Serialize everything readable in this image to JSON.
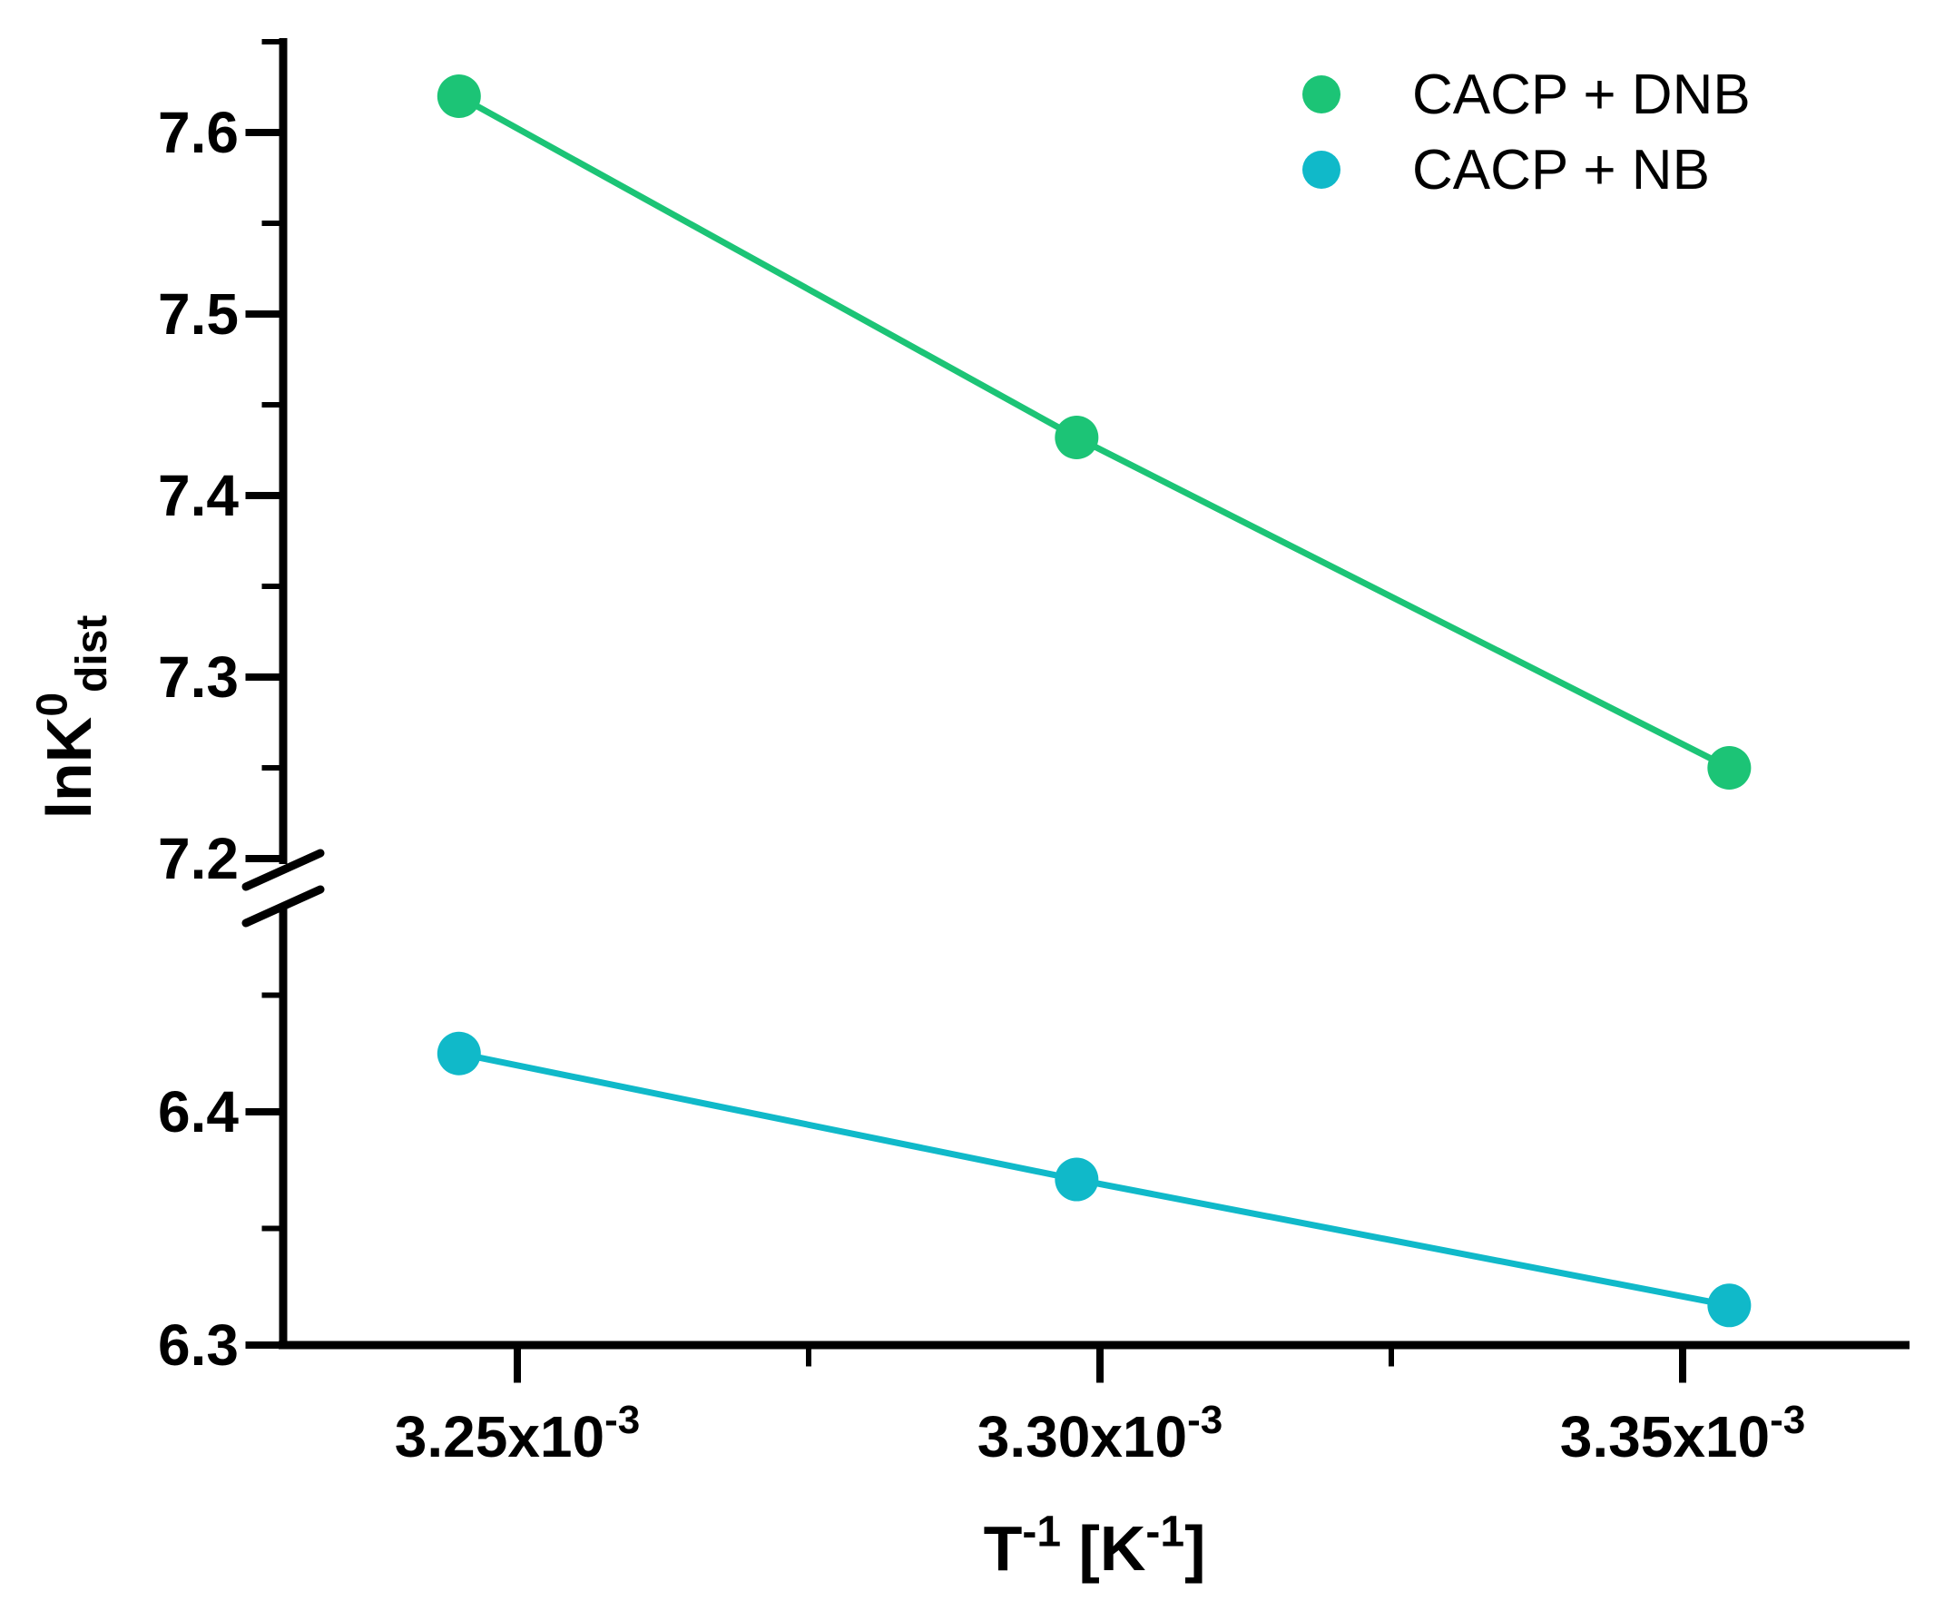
{
  "chart_data": {
    "type": "scatter",
    "title": "",
    "xlabel_segments": [
      {
        "t": "T"
      },
      {
        "t": "-1",
        "sup": true
      },
      {
        "t": " [K",
        "base": true
      },
      {
        "t": "-1",
        "sup": true
      },
      {
        "t": "]",
        "base": true
      }
    ],
    "ylabel_segments": [
      {
        "t": "lnK"
      },
      {
        "t": "0",
        "sup": true
      },
      {
        "t": "dist",
        "sub": true
      }
    ],
    "x_axis": {
      "major_ticks": [
        {
          "value": 0.00325,
          "mantissa": "3.25x10",
          "exp": "-3"
        },
        {
          "value": 0.0033,
          "mantissa": "3.30x10",
          "exp": "-3"
        },
        {
          "value": 0.00335,
          "mantissa": "3.35x10",
          "exp": "-3"
        }
      ],
      "minor_ticks": [
        0.003275,
        0.003325
      ],
      "range": [
        0.00323,
        0.00337
      ]
    },
    "y_axis": {
      "break_symbol": "double-slash",
      "break_between": [
        6.49,
        7.2
      ],
      "upper_segment": {
        "range": [
          7.2,
          7.655
        ],
        "major_ticks": [
          {
            "value": 7.6,
            "label": "7.6"
          },
          {
            "value": 7.5,
            "label": "7.5"
          },
          {
            "value": 7.4,
            "label": "7.4"
          },
          {
            "value": 7.3,
            "label": "7.3"
          },
          {
            "value": 7.2,
            "label": "7.2"
          }
        ],
        "minor_ticks": [
          7.65,
          7.55,
          7.45,
          7.35,
          7.25
        ]
      },
      "lower_segment": {
        "range": [
          6.3,
          6.49
        ],
        "major_ticks": [
          {
            "value": 6.4,
            "label": "6.4"
          },
          {
            "value": 6.3,
            "label": "6.3"
          }
        ],
        "minor_ticks": [
          6.45,
          6.35
        ]
      }
    },
    "series": [
      {
        "name": "CACP + NB",
        "color": "#10b9c9",
        "marker": "circle",
        "x": [
          0.003245,
          0.003298,
          0.003354
        ],
        "y": [
          6.425,
          6.371,
          6.317
        ]
      },
      {
        "name": "CACP + DNB",
        "color": "#1cc476",
        "marker": "circle",
        "x": [
          0.003245,
          0.003298,
          0.003354
        ],
        "y": [
          7.62,
          7.432,
          7.25
        ]
      }
    ],
    "legend": {
      "position": "top-right"
    },
    "colors": {
      "background": "#ffffff",
      "axis": "#000000",
      "text": "#000000"
    },
    "grid": false
  }
}
